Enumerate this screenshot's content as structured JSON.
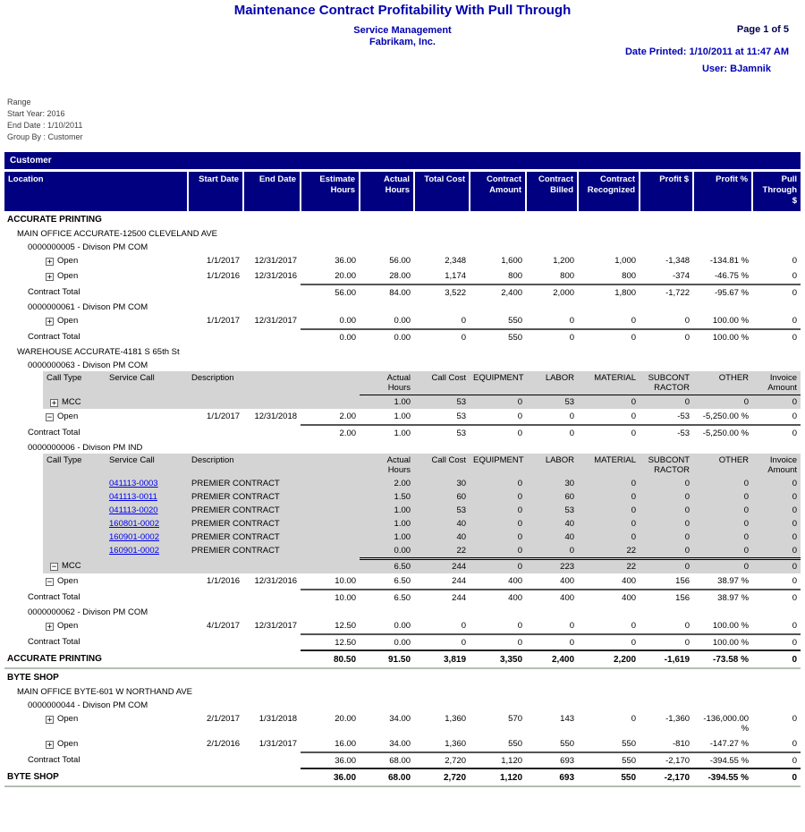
{
  "header": {
    "title": "Maintenance Contract Profitability With Pull Through",
    "subtitle1": "Service Management",
    "subtitle2": "Fabrikam, Inc.",
    "page": "Page 1 of 5",
    "date_printed": "Date Printed: 1/10/2011 at 11:47 AM",
    "user": "User: BJamnik"
  },
  "range": {
    "label": "Range",
    "start_year": "Start Year: 2016",
    "end_date": "End Date : 1/10/2011",
    "group_by": "Group By : Customer"
  },
  "band_label": "Customer",
  "columns": [
    "Location",
    "Start Date",
    "End Date",
    "Estimate Hours",
    "Actual Hours",
    "Total Cost",
    "Contract Amount",
    "Contract Billed",
    "Contract Recognized",
    "Profit $",
    "Profit %",
    "Pull Through $"
  ],
  "sub_columns": [
    "Call Type",
    "Service Call",
    "Description",
    "Actual Hours",
    "Call Cost",
    "EQUIPMENT",
    "LABOR",
    "MATERIAL",
    "SUBCONTRACTOR",
    "OTHER",
    "Invoice Amount"
  ],
  "icons": {
    "plus": "+",
    "minus": "−"
  },
  "colors": {
    "band_navy": "#000080",
    "title_blue": "#0000AE",
    "info_blue": "#0000B4",
    "page_dark": "#00004D",
    "subtable_gray": "#D4D4D4",
    "link_blue": "#0000EE",
    "group_total_rule_gray": "#B6BEB6"
  },
  "rows": [
    {
      "type": "section",
      "label": "ACCURATE PRINTING"
    },
    {
      "type": "location",
      "label": "MAIN OFFICE ACCURATE-12500 CLEVELAND AVE"
    },
    {
      "type": "contract",
      "label": "0000000005 - Divison PM COM"
    },
    {
      "type": "open",
      "icon": "plus",
      "label": "Open",
      "start": "1/1/2017",
      "end": "12/31/2017",
      "values": [
        "36.00",
        "56.00",
        "2,348",
        "1,600",
        "1,200",
        "1,000",
        "-1,348",
        "-134.81 %",
        "0"
      ]
    },
    {
      "type": "open",
      "icon": "plus",
      "label": "Open",
      "start": "1/1/2016",
      "end": "12/31/2016",
      "values": [
        "20.00",
        "28.00",
        "1,174",
        "800",
        "800",
        "800",
        "-374",
        "-46.75 %",
        "0"
      ]
    },
    {
      "type": "contract_total",
      "label": "Contract Total",
      "values": [
        "56.00",
        "84.00",
        "3,522",
        "2,400",
        "2,000",
        "1,800",
        "-1,722",
        "-95.67 %",
        "0"
      ]
    },
    {
      "type": "contract",
      "label": "0000000061 - Divison PM COM"
    },
    {
      "type": "open",
      "icon": "plus",
      "label": "Open",
      "start": "1/1/2017",
      "end": "12/31/2017",
      "values": [
        "0.00",
        "0.00",
        "0",
        "550",
        "0",
        "0",
        "0",
        "100.00 %",
        "0"
      ]
    },
    {
      "type": "contract_total",
      "label": "Contract Total",
      "values": [
        "0.00",
        "0.00",
        "0",
        "550",
        "0",
        "0",
        "0",
        "100.00 %",
        "0"
      ]
    },
    {
      "type": "location",
      "label": "WAREHOUSE ACCURATE-4181 S 65th St"
    },
    {
      "type": "contract",
      "label": "0000000063 - Divison PM COM"
    },
    {
      "type": "sub_header"
    },
    {
      "type": "mcc",
      "icon": "plus",
      "label": "MCC",
      "rule": "single",
      "values": [
        "1.00",
        "53",
        "0",
        "53",
        "0",
        "0",
        "0",
        "0"
      ]
    },
    {
      "type": "open",
      "icon": "minus",
      "label": "Open",
      "start": "1/1/2017",
      "end": "12/31/2018",
      "values": [
        "2.00",
        "1.00",
        "53",
        "0",
        "0",
        "0",
        "-53",
        "-5,250.00 %",
        "0"
      ]
    },
    {
      "type": "contract_total",
      "label": "Contract Total",
      "values": [
        "2.00",
        "1.00",
        "53",
        "0",
        "0",
        "0",
        "-53",
        "-5,250.00 %",
        "0"
      ]
    },
    {
      "type": "contract",
      "label": "0000000006 - Divison PM IND"
    },
    {
      "type": "sub_header"
    },
    {
      "type": "sub_call",
      "call": "041113-0003",
      "desc": "PREMIER CONTRACT",
      "values": [
        "2.00",
        "30",
        "0",
        "30",
        "0",
        "0",
        "0",
        "0"
      ]
    },
    {
      "type": "sub_call",
      "call": "041113-0011",
      "desc": "PREMIER CONTRACT",
      "values": [
        "1.50",
        "60",
        "0",
        "60",
        "0",
        "0",
        "0",
        "0"
      ]
    },
    {
      "type": "sub_call",
      "call": "041113-0020",
      "desc": "PREMIER CONTRACT",
      "values": [
        "1.00",
        "53",
        "0",
        "53",
        "0",
        "0",
        "0",
        "0"
      ]
    },
    {
      "type": "sub_call",
      "call": "160801-0002",
      "desc": "PREMIER CONTRACT",
      "values": [
        "1.00",
        "40",
        "0",
        "40",
        "0",
        "0",
        "0",
        "0"
      ]
    },
    {
      "type": "sub_call",
      "call": "160901-0002",
      "desc": "PREMIER CONTRACT",
      "values": [
        "1.00",
        "40",
        "0",
        "40",
        "0",
        "0",
        "0",
        "0"
      ]
    },
    {
      "type": "sub_call",
      "call": "160901-0002",
      "desc": "PREMIER CONTRACT",
      "values": [
        "0.00",
        "22",
        "0",
        "0",
        "22",
        "0",
        "0",
        "0"
      ]
    },
    {
      "type": "mcc",
      "icon": "minus",
      "label": "MCC",
      "rule": "double",
      "values": [
        "6.50",
        "244",
        "0",
        "223",
        "22",
        "0",
        "0",
        "0"
      ]
    },
    {
      "type": "open",
      "icon": "minus",
      "label": "Open",
      "start": "1/1/2016",
      "end": "12/31/2016",
      "values": [
        "10.00",
        "6.50",
        "244",
        "400",
        "400",
        "400",
        "156",
        "38.97 %",
        "0"
      ]
    },
    {
      "type": "contract_total",
      "label": "Contract Total",
      "values": [
        "10.00",
        "6.50",
        "244",
        "400",
        "400",
        "400",
        "156",
        "38.97 %",
        "0"
      ]
    },
    {
      "type": "contract",
      "label": "0000000062 - Divison PM COM"
    },
    {
      "type": "open",
      "icon": "plus",
      "label": "Open",
      "start": "4/1/2017",
      "end": "12/31/2017",
      "values": [
        "12.50",
        "0.00",
        "0",
        "0",
        "0",
        "0",
        "0",
        "100.00 %",
        "0"
      ]
    },
    {
      "type": "contract_total",
      "label": "Contract Total",
      "values": [
        "12.50",
        "0.00",
        "0",
        "0",
        "0",
        "0",
        "0",
        "100.00 %",
        "0"
      ]
    },
    {
      "type": "group_total",
      "label": "ACCURATE PRINTING",
      "values": [
        "80.50",
        "91.50",
        "3,819",
        "3,350",
        "2,400",
        "2,200",
        "-1,619",
        "-73.58 %",
        "0"
      ]
    },
    {
      "type": "section",
      "label": "BYTE SHOP"
    },
    {
      "type": "location",
      "label": "MAIN OFFICE BYTE-601 W NORTHAND AVE"
    },
    {
      "type": "contract",
      "label": "0000000044 - Divison PM COM"
    },
    {
      "type": "open",
      "icon": "plus",
      "label": "Open",
      "start": "2/1/2017",
      "end": "1/31/2018",
      "values": [
        "20.00",
        "34.00",
        "1,360",
        "570",
        "143",
        "0",
        "-1,360",
        "-136,000.00 %",
        "0"
      ]
    },
    {
      "type": "open",
      "icon": "plus",
      "label": "Open",
      "start": "2/1/2016",
      "end": "1/31/2017",
      "values": [
        "16.00",
        "34.00",
        "1,360",
        "550",
        "550",
        "550",
        "-810",
        "-147.27 %",
        "0"
      ]
    },
    {
      "type": "contract_total",
      "label": "Contract Total",
      "values": [
        "36.00",
        "68.00",
        "2,720",
        "1,120",
        "693",
        "550",
        "-2,170",
        "-394.55 %",
        "0"
      ]
    },
    {
      "type": "group_total",
      "label": "BYTE SHOP",
      "values": [
        "36.00",
        "68.00",
        "2,720",
        "1,120",
        "693",
        "550",
        "-2,170",
        "-394.55 %",
        "0"
      ]
    }
  ]
}
